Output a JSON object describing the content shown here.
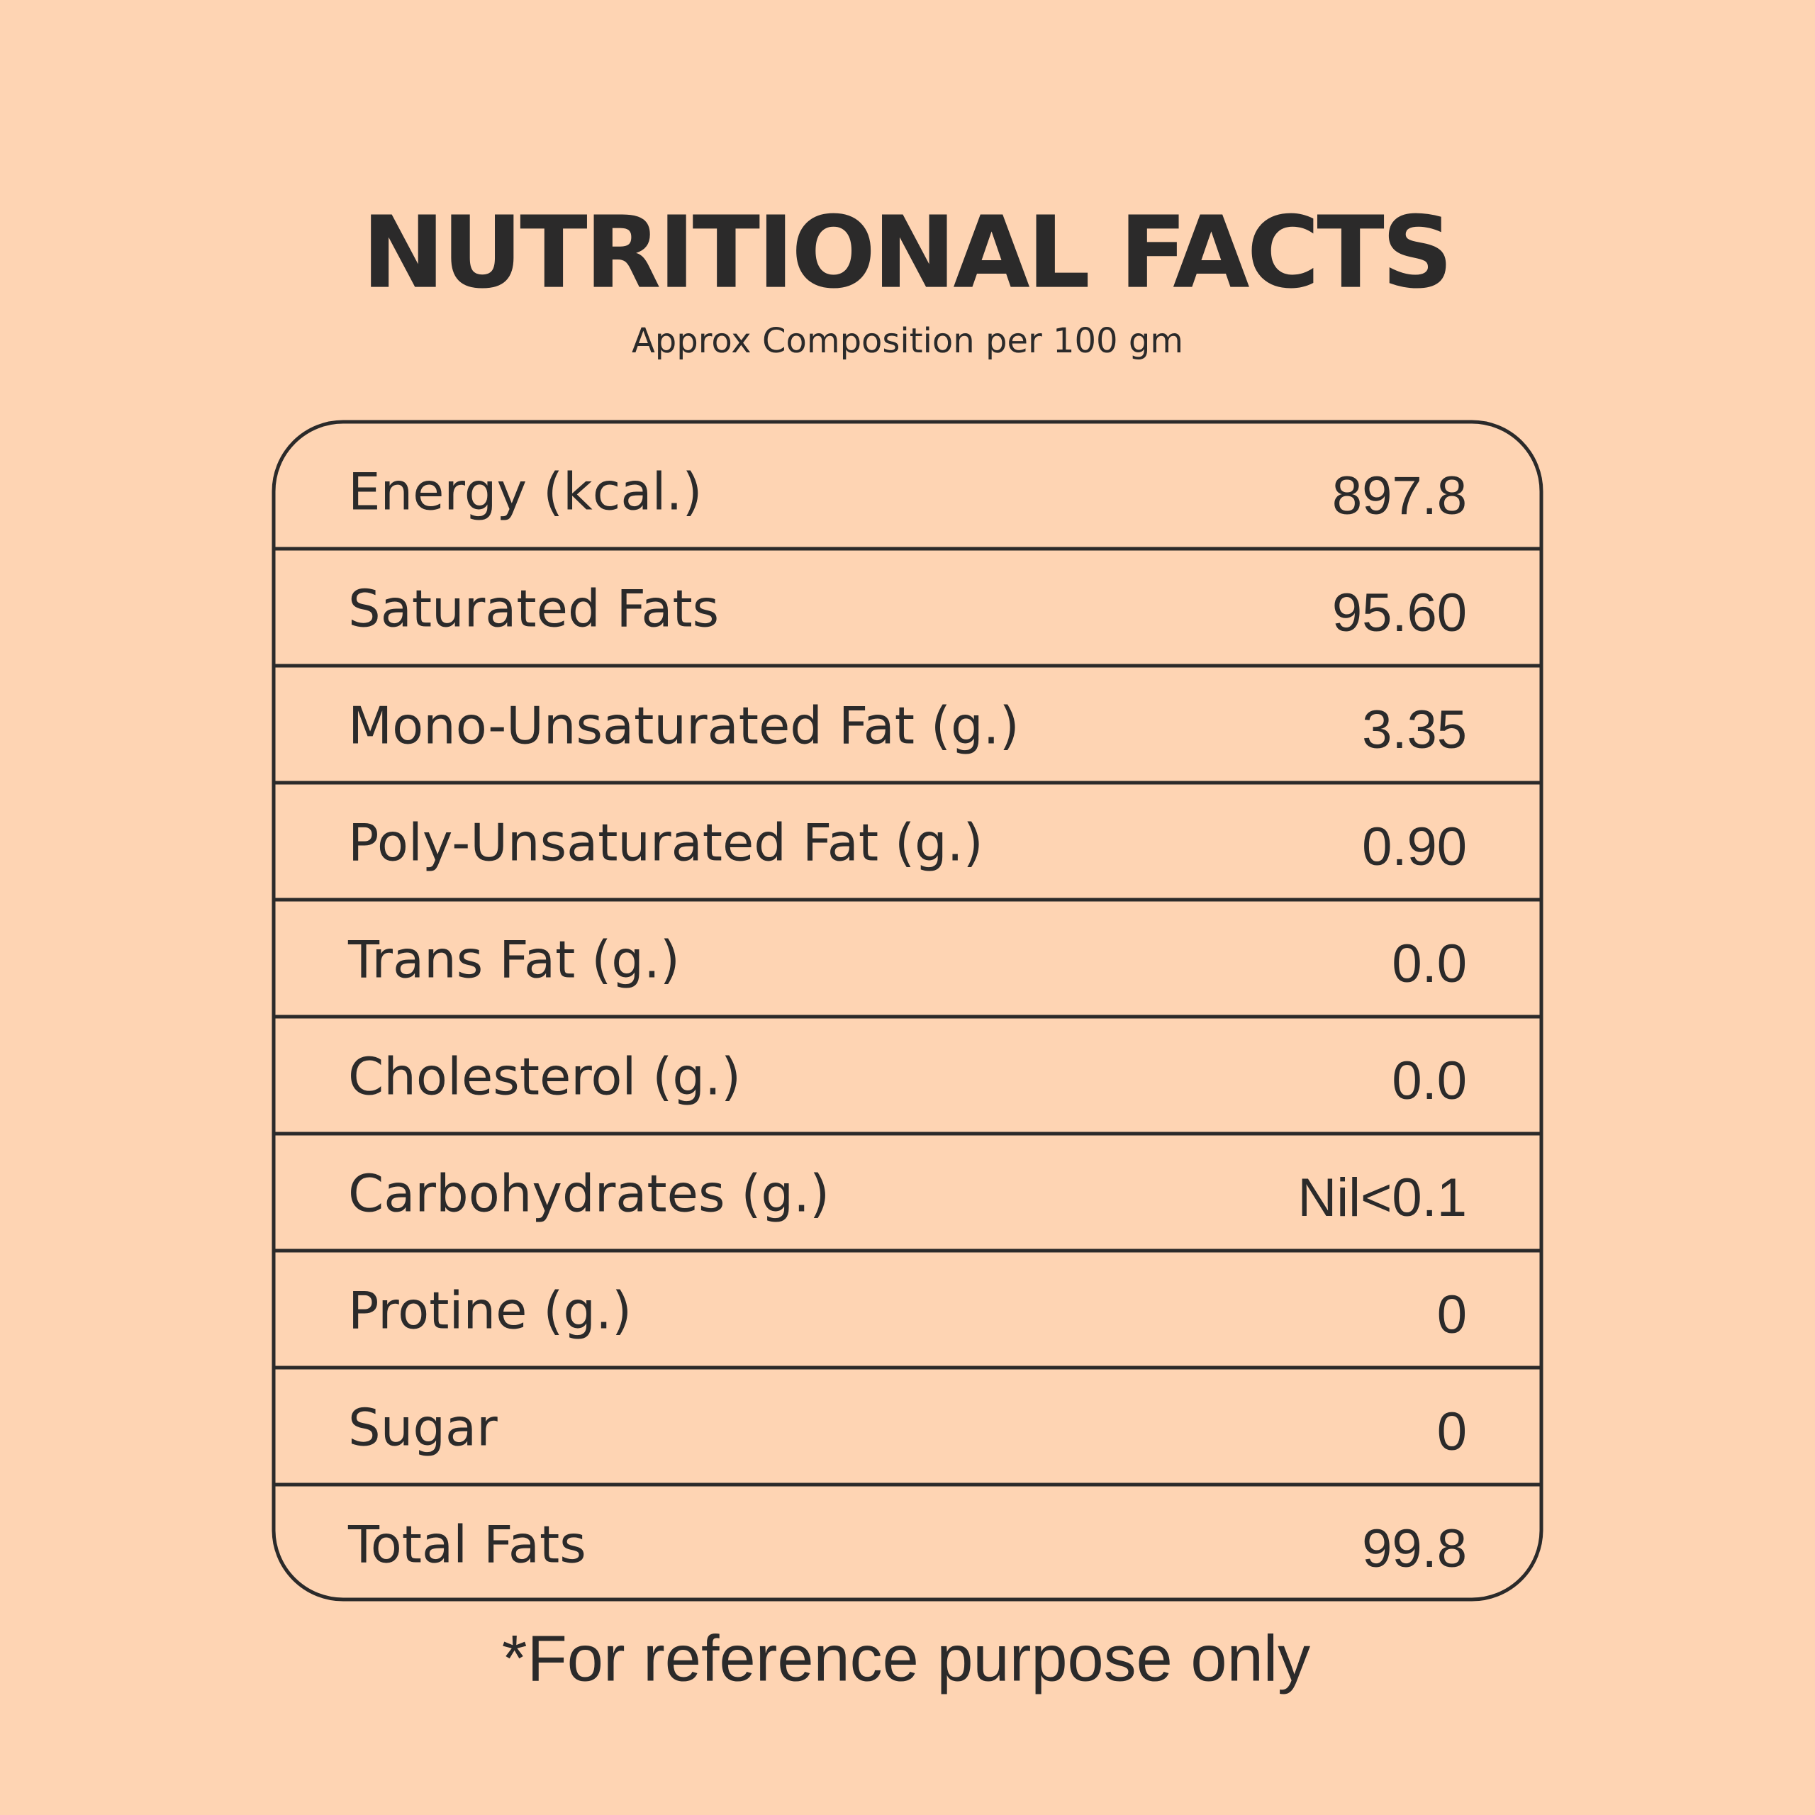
{
  "header": {
    "title": "NUTRITIONAL FACTS",
    "subtitle": "Approx Composition per 100 gm"
  },
  "table": {
    "rows": [
      [
        "Energy (kcal.)",
        "897.8"
      ],
      [
        "Saturated Fats",
        "95.60"
      ],
      [
        "Mono-Unsaturated Fat (g.)",
        "3.35"
      ],
      [
        "Poly-Unsaturated Fat (g.)",
        "0.90"
      ],
      [
        "Trans Fat (g.)",
        "0.0"
      ],
      [
        "Cholesterol (g.)",
        "0.0"
      ],
      [
        "Carbohydrates (g.)",
        "Nil<0.1"
      ],
      [
        "Protine (g.)",
        "0"
      ],
      [
        "Sugar",
        "0"
      ],
      [
        "Total Fats",
        "99.8"
      ]
    ]
  },
  "footnote": "*For reference purpose only"
}
